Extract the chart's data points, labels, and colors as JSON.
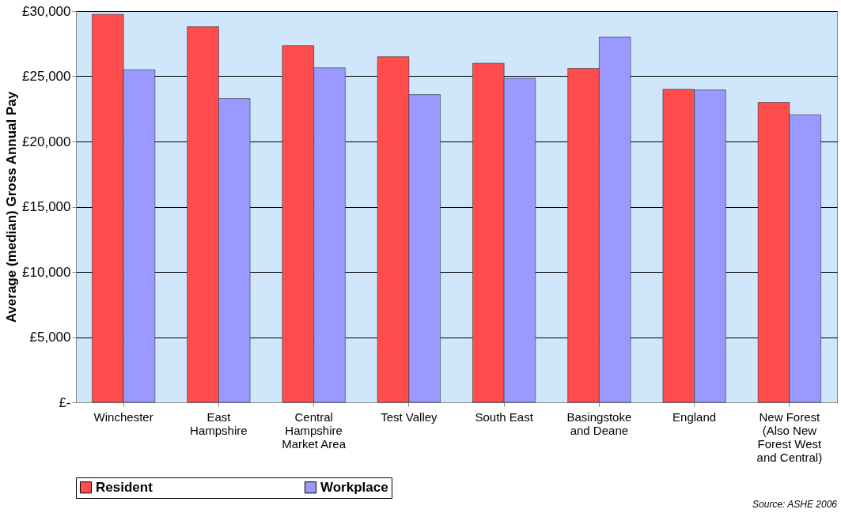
{
  "chart_data": {
    "type": "bar",
    "ylabel": "Average (median) Gross Annual Pay",
    "categories": [
      "Winchester",
      "East Hampshire",
      "Central Hampshire Market Area",
      "Test Valley",
      "South East",
      "Basingstoke and Deane",
      "England",
      "New Forest (Also New Forest West and Central)"
    ],
    "series": [
      {
        "name": "Resident",
        "color": "#ff4d4d",
        "values": [
          29750,
          28800,
          27350,
          26500,
          26000,
          25600,
          24000,
          23000
        ]
      },
      {
        "name": "Workplace",
        "color": "#9999ff",
        "values": [
          25500,
          23300,
          25650,
          23600,
          24850,
          28000,
          23950,
          22050
        ]
      }
    ],
    "ylim": [
      0,
      30000
    ],
    "yticks": [
      {
        "value": 0,
        "label": "£-"
      },
      {
        "value": 5000,
        "label": "£5,000"
      },
      {
        "value": 10000,
        "label": "£10,000"
      },
      {
        "value": 15000,
        "label": "£15,000"
      },
      {
        "value": 20000,
        "label": "£20,000"
      },
      {
        "value": 25000,
        "label": "£25,000"
      },
      {
        "value": 30000,
        "label": "£30,000"
      }
    ],
    "grid": "y",
    "legend": "bottom",
    "annotations": [
      "Source: ASHE 2006"
    ]
  }
}
